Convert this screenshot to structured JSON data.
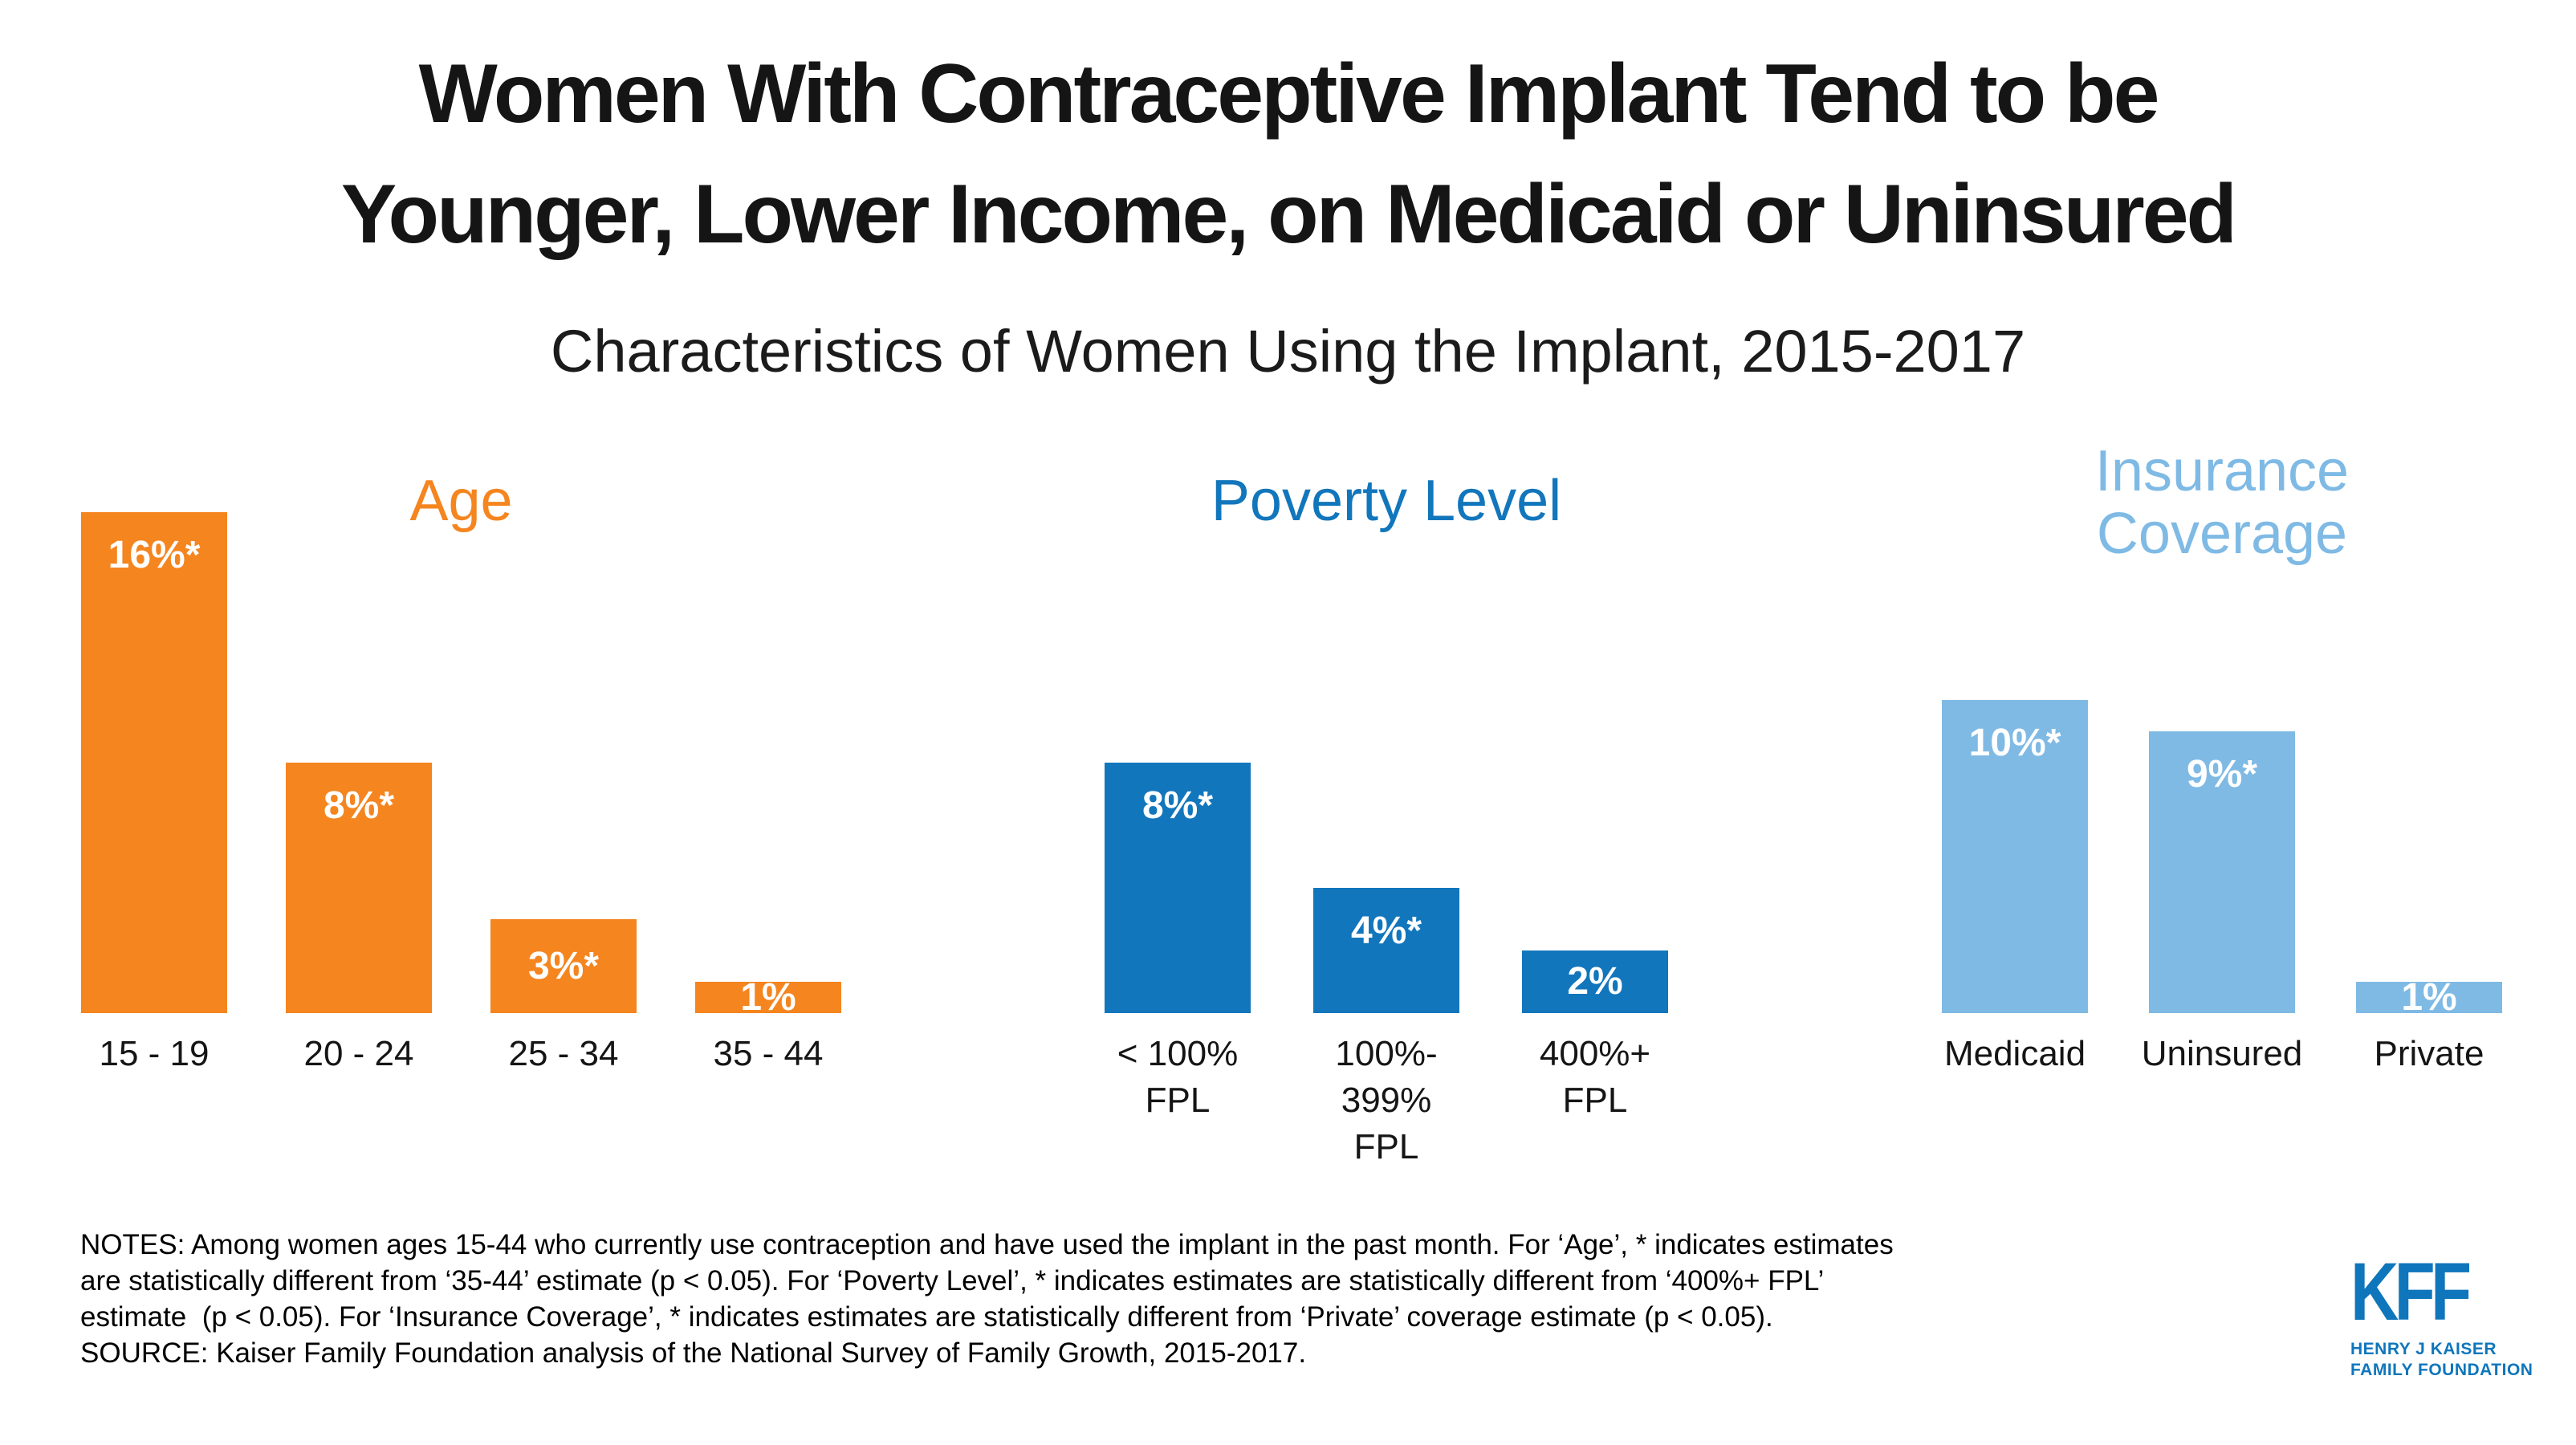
{
  "header": {
    "title_line1": "Women With Contraceptive Implant Tend to be",
    "title_line2": "Younger, Lower Income, on Medicaid or Uninsured",
    "subtitle": "Characteristics of Women Using the Implant, 2015-2017"
  },
  "chart_data": {
    "type": "bar",
    "unit": "percent of women ages 15-44 using contraception",
    "ylim": [
      0,
      16
    ],
    "grid": false,
    "groups": [
      {
        "id": "age",
        "title": "Age",
        "color": "#F5851F",
        "bars": [
          {
            "label": "15 - 19",
            "value": 16,
            "value_label": "16%*"
          },
          {
            "label": "20 - 24",
            "value": 8,
            "value_label": "8%*"
          },
          {
            "label": "25 - 34",
            "value": 3,
            "value_label": "3%*"
          },
          {
            "label": "35 - 44",
            "value": 1,
            "value_label": "1%"
          }
        ]
      },
      {
        "id": "poverty-level",
        "title": "Poverty Level",
        "color": "#1276BC",
        "bars": [
          {
            "label": "< 100%\nFPL",
            "value": 8,
            "value_label": "8%*"
          },
          {
            "label": "100%-\n399%\nFPL",
            "value": 4,
            "value_label": "4%*"
          },
          {
            "label": "400%+\nFPL",
            "value": 2,
            "value_label": "2%"
          }
        ]
      },
      {
        "id": "insurance-coverage",
        "title": "Insurance\nCoverage",
        "color": "#7FBAE5",
        "bars": [
          {
            "label": "Medicaid",
            "value": 10,
            "value_label": "10%*"
          },
          {
            "label": "Uninsured",
            "value": 9,
            "value_label": "9%*"
          },
          {
            "label": "Private",
            "value": 1,
            "value_label": "1%"
          }
        ]
      }
    ]
  },
  "notes": {
    "lines": [
      "NOTES: Among women ages 15-44 who currently use contraception and have used the implant in the past month. For ‘Age’, * indicates estimates",
      "are statistically different from ‘35-44’ estimate (p < 0.05). For ‘Poverty Level’, * indicates estimates are statistically different from ‘400%+ FPL’",
      "estimate  (p < 0.05). For ‘Insurance Coverage’, * indicates estimates are statistically different from ‘Private’ coverage estimate (p < 0.05).",
      "SOURCE: Kaiser Family Foundation analysis of the National Survey of Family Growth, 2015-2017."
    ]
  },
  "logo": {
    "wordmark": "KFF",
    "sub_line1": "HENRY J KAISER",
    "sub_line2": "FAMILY FOUNDATION",
    "color": "#0F76BC"
  }
}
